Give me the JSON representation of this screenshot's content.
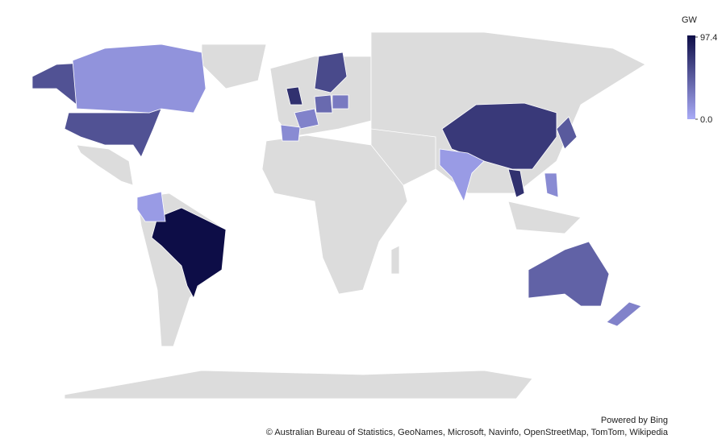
{
  "legend": {
    "title": "GW",
    "ticks": [
      {
        "value": 0,
        "label": "0.0"
      },
      97.4
    ]
  },
  "regions": {
    "values": [
      97.4,
      70,
      75,
      55,
      45,
      15,
      10,
      60,
      50,
      75,
      40,
      10,
      25,
      25,
      20,
      20,
      30
    ]
  },
  "footer": {
    "powered": "Powered by Bing",
    "attribution": "© Australian Bureau of Statistics, GeoNames, Microsoft, Navinfo, OpenStreetMap, TomTom, Wikipedia"
  }
}
